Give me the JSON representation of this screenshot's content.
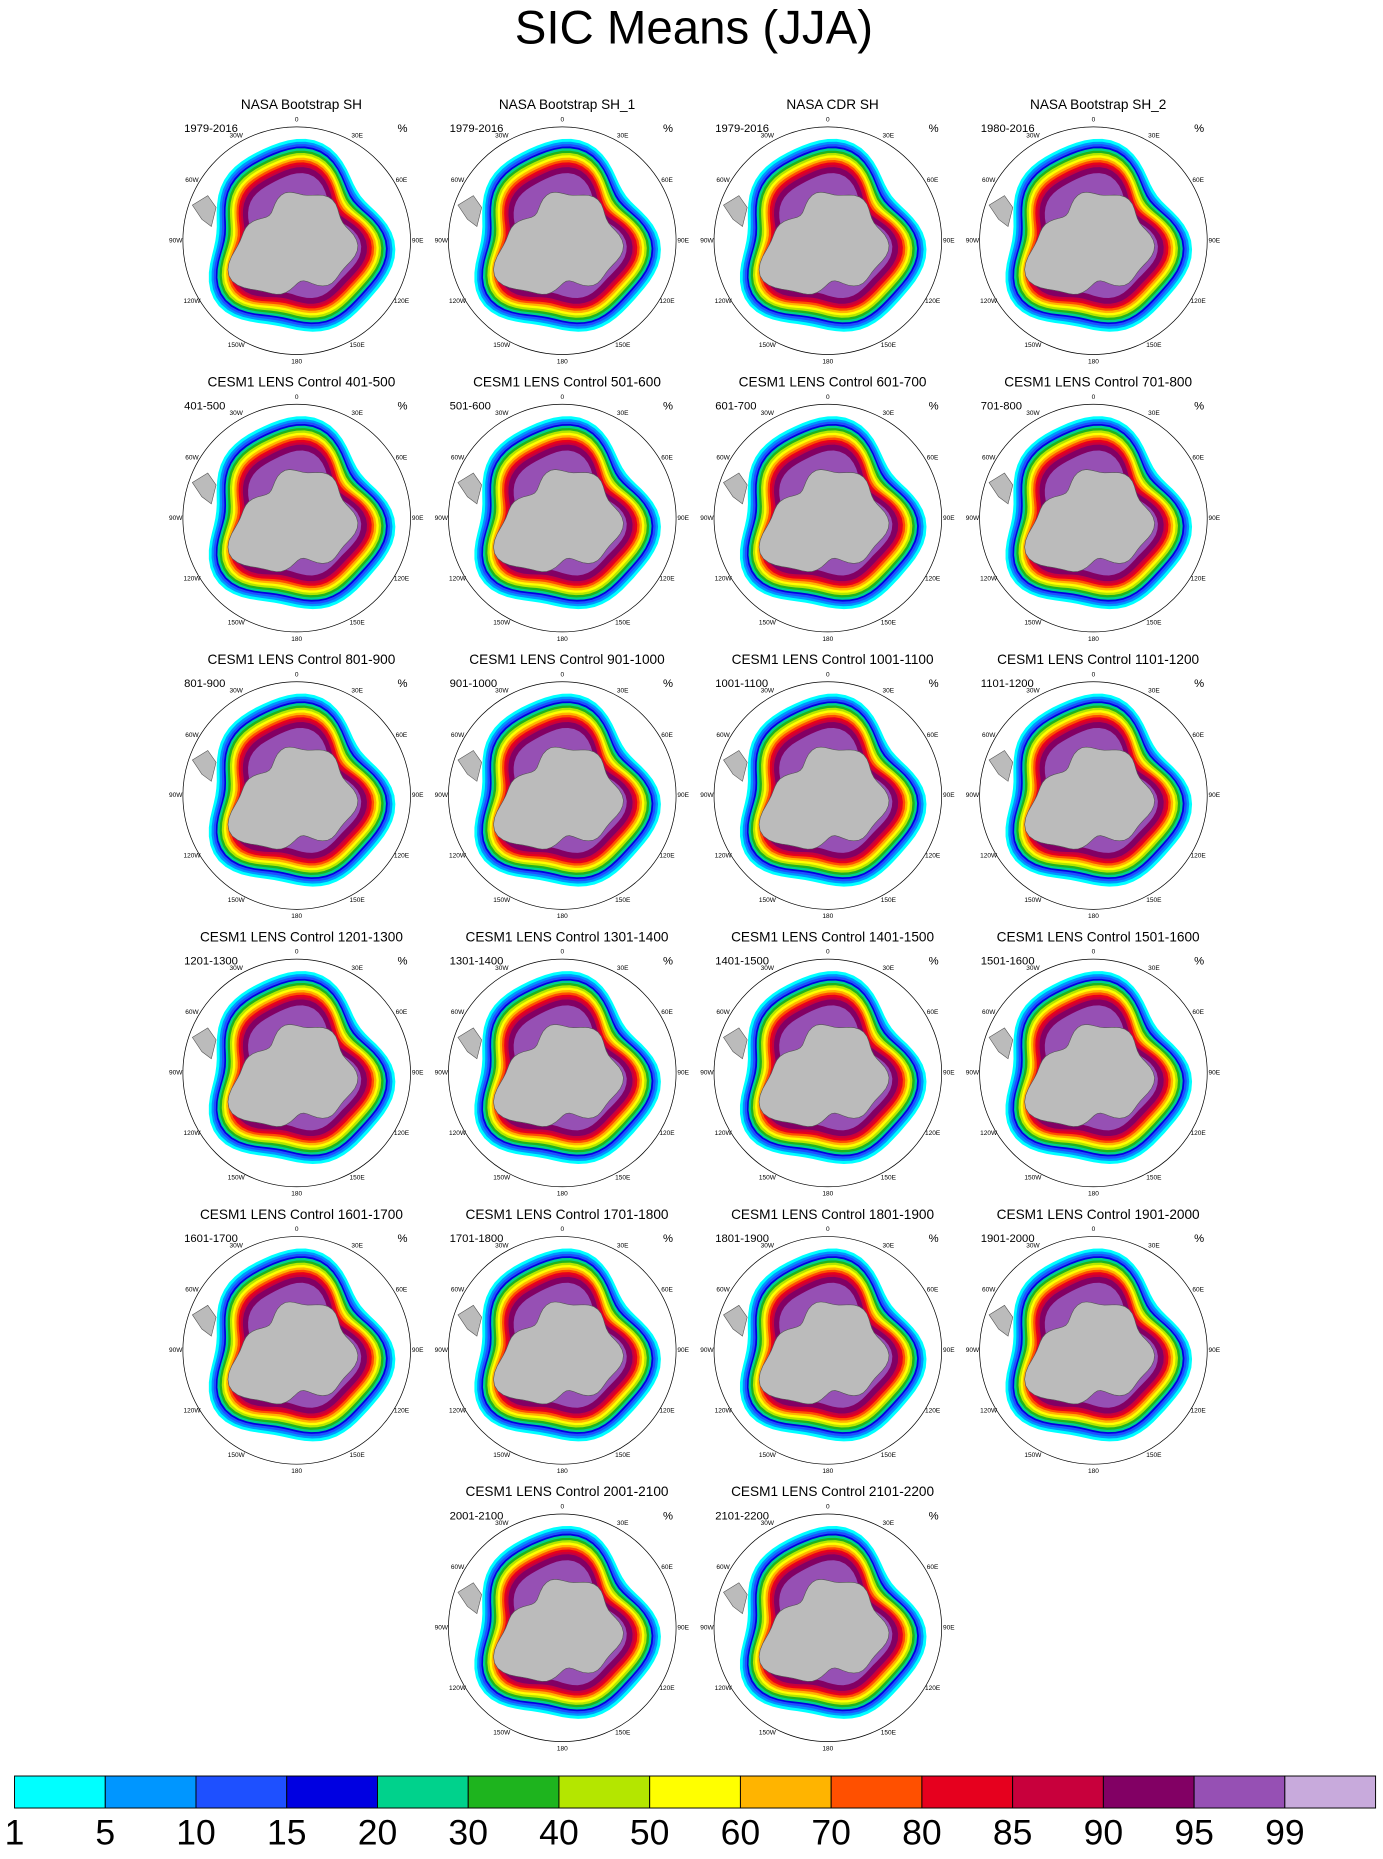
{
  "title": "SIC Means (JJA)",
  "unit": "%",
  "longitude_labels": [
    "0",
    "30E",
    "60E",
    "90E",
    "120E",
    "150E",
    "180",
    "150W",
    "120W",
    "90W",
    "60W",
    "30W"
  ],
  "panels": [
    {
      "title": "NASA Bootstrap SH",
      "period": "1979-2016"
    },
    {
      "title": "NASA Bootstrap SH_1",
      "period": "1979-2016"
    },
    {
      "title": "NASA CDR SH",
      "period": "1979-2016"
    },
    {
      "title": "NASA Bootstrap SH_2",
      "period": "1980-2016"
    },
    {
      "title": "CESM1 LENS Control 401-500",
      "period": "401-500"
    },
    {
      "title": "CESM1 LENS Control 501-600",
      "period": "501-600"
    },
    {
      "title": "CESM1 LENS Control 601-700",
      "period": "601-700"
    },
    {
      "title": "CESM1 LENS Control 701-800",
      "period": "701-800"
    },
    {
      "title": "CESM1 LENS Control 801-900",
      "period": "801-900"
    },
    {
      "title": "CESM1 LENS Control 901-1000",
      "period": "901-1000"
    },
    {
      "title": "CESM1 LENS Control 1001-1100",
      "period": "1001-1100"
    },
    {
      "title": "CESM1 LENS Control 1101-1200",
      "period": "1101-1200"
    },
    {
      "title": "CESM1 LENS Control 1201-1300",
      "period": "1201-1300"
    },
    {
      "title": "CESM1 LENS Control 1301-1400",
      "period": "1301-1400"
    },
    {
      "title": "CESM1 LENS Control 1401-1500",
      "period": "1401-1500"
    },
    {
      "title": "CESM1 LENS Control 1501-1600",
      "period": "1501-1600"
    },
    {
      "title": "CESM1 LENS Control 1601-1700",
      "period": "1601-1700"
    },
    {
      "title": "CESM1 LENS Control 1701-1800",
      "period": "1701-1800"
    },
    {
      "title": "CESM1 LENS Control 1801-1900",
      "period": "1801-1900"
    },
    {
      "title": "CESM1 LENS Control 1901-2000",
      "period": "1901-2000"
    },
    {
      "title": "CESM1 LENS Control 2001-2100",
      "period": "2001-2100"
    },
    {
      "title": "CESM1 LENS Control 2101-2200",
      "period": "2101-2200"
    }
  ],
  "colorbar": {
    "levels": [
      1,
      5,
      10,
      15,
      20,
      30,
      40,
      50,
      60,
      70,
      80,
      85,
      90,
      95,
      99
    ],
    "colors": [
      "#00ffff",
      "#0096ff",
      "#1e50ff",
      "#0000e1",
      "#00d28c",
      "#1eb41e",
      "#b4e600",
      "#ffff00",
      "#ffb400",
      "#ff5000",
      "#e6001e",
      "#c8003c",
      "#820064",
      "#9650b4",
      "#c8aadc"
    ]
  }
}
